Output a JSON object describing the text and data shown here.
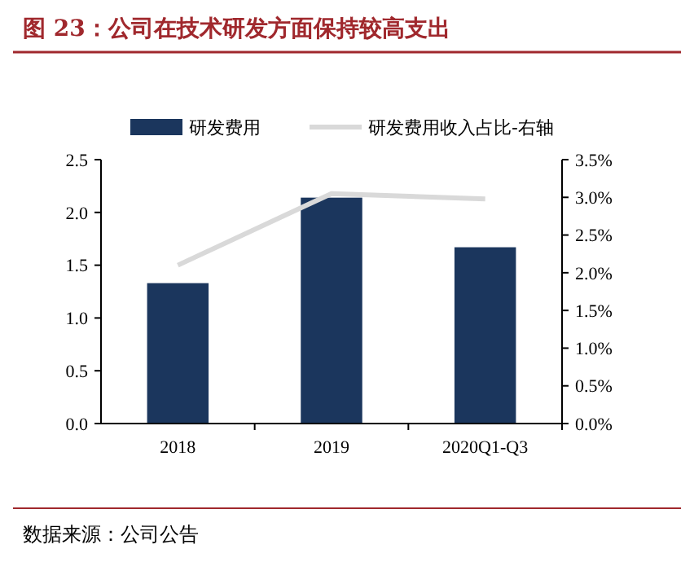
{
  "chart_data": {
    "type": "bar",
    "title": "图 23：公司在技术研发方面保持较高支出",
    "categories": [
      "2018",
      "2019",
      "2020Q1-Q3"
    ],
    "series": [
      {
        "name": "研发费用",
        "color": "#1b365d",
        "values": [
          1.33,
          2.14,
          1.67
        ]
      },
      {
        "name": "研发费用收入占比-右轴",
        "type": "line",
        "axis": "y2",
        "color": "#d9d9d9",
        "values": [
          2.1,
          3.05,
          2.98
        ]
      }
    ],
    "ylim": [
      0,
      2.5
    ],
    "yticks": [
      {
        "value": 0,
        "label": "0.0"
      },
      {
        "value": 0.5,
        "label": "0.5"
      },
      {
        "value": 1,
        "label": "1.0"
      },
      {
        "value": 1.5,
        "label": "1.5"
      },
      {
        "value": 2,
        "label": "2.0"
      },
      {
        "value": 2.5,
        "label": "2.5"
      }
    ],
    "y2lim": [
      0,
      3.5
    ],
    "y2ticks": [
      {
        "value": 0,
        "label": "0.0%"
      },
      {
        "value": 0.5,
        "label": "0.5%"
      },
      {
        "value": 1,
        "label": "1.0%"
      },
      {
        "value": 1.5,
        "label": "1.5%"
      },
      {
        "value": 2,
        "label": "2.0%"
      },
      {
        "value": 2.5,
        "label": "2.5%"
      },
      {
        "value": 3,
        "label": "3.0%"
      },
      {
        "value": 3.5,
        "label": "3.5%"
      }
    ],
    "legend": "top",
    "grid": false,
    "marker": "none",
    "annotations": [
      "数据来源：公司公告"
    ]
  }
}
